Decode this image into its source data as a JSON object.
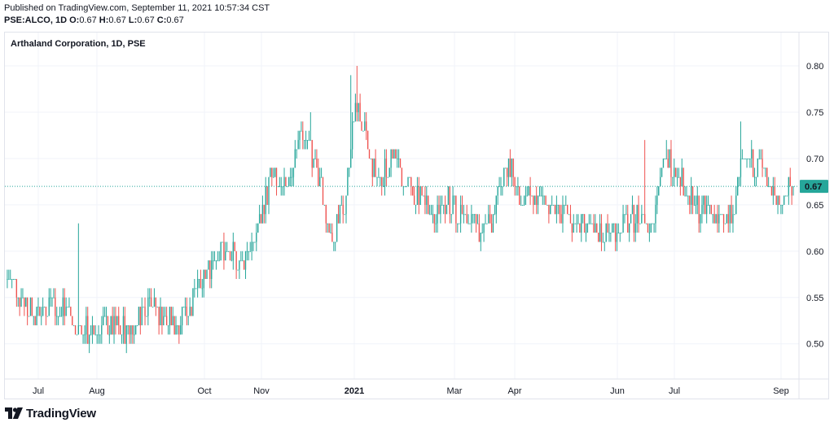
{
  "header": {
    "published": "Published on TradingView.com, September 11, 2021 10:57:34 CST",
    "symbol_line": {
      "symbol": "PSE:ALCO, 1D",
      "o_label": "O:",
      "o_value": "0.67",
      "h_label": "H:",
      "h_value": "0.67",
      "l_label": "L:",
      "l_value": "0.67",
      "c_label": "C:",
      "c_value": "0.67"
    }
  },
  "chart_title": "Arthaland Corporation, 1D, PSE",
  "logo_text": "TradingView",
  "colors": {
    "up": "#26a69a",
    "down": "#ef5350",
    "grid": "#f0f3fa",
    "price_line": "#26a69a",
    "price_label_bg": "#26a69a"
  },
  "chart_data": {
    "type": "candlestick",
    "y_ticks": [
      "0.80",
      "0.75",
      "0.70",
      "0.65",
      "0.60",
      "0.55",
      "0.50"
    ],
    "x_ticks": [
      "Jul",
      "Aug",
      "Oct",
      "Nov",
      "2021",
      "Mar",
      "Apr",
      "Jun",
      "Jul",
      "Sep"
    ],
    "x_tick_bold": [
      false,
      false,
      false,
      false,
      true,
      false,
      false,
      false,
      false,
      false
    ],
    "last_price": "0.67",
    "ylim": [
      0.462,
      0.836
    ],
    "anchors": [
      [
        0,
        0.57
      ],
      [
        10,
        0.55
      ],
      [
        18,
        0.53
      ],
      [
        28,
        0.55
      ],
      [
        34,
        0.53
      ],
      [
        38,
        0.55
      ],
      [
        44,
        0.51
      ],
      [
        48,
        0.52
      ],
      [
        55,
        0.51
      ],
      [
        62,
        0.52
      ],
      [
        70,
        0.52
      ],
      [
        78,
        0.51
      ],
      [
        84,
        0.53
      ],
      [
        92,
        0.55
      ],
      [
        100,
        0.53
      ],
      [
        108,
        0.52
      ],
      [
        116,
        0.54
      ],
      [
        124,
        0.56
      ],
      [
        132,
        0.59
      ],
      [
        140,
        0.6
      ],
      [
        148,
        0.59
      ],
      [
        156,
        0.6
      ],
      [
        163,
        0.63
      ],
      [
        170,
        0.68
      ],
      [
        178,
        0.66
      ],
      [
        185,
        0.7
      ],
      [
        190,
        0.73
      ],
      [
        196,
        0.71
      ],
      [
        200,
        0.68
      ],
      [
        205,
        0.64
      ],
      [
        212,
        0.62
      ],
      [
        218,
        0.65
      ],
      [
        222,
        0.72
      ],
      [
        226,
        0.76
      ],
      [
        230,
        0.73
      ],
      [
        234,
        0.7
      ],
      [
        240,
        0.67
      ],
      [
        248,
        0.7
      ],
      [
        254,
        0.68
      ],
      [
        262,
        0.66
      ],
      [
        270,
        0.66
      ],
      [
        278,
        0.64
      ],
      [
        284,
        0.66
      ],
      [
        292,
        0.64
      ],
      [
        298,
        0.63
      ],
      [
        305,
        0.62
      ],
      [
        312,
        0.63
      ],
      [
        318,
        0.66
      ],
      [
        324,
        0.7
      ],
      [
        328,
        0.67
      ],
      [
        334,
        0.66
      ],
      [
        340,
        0.66
      ],
      [
        346,
        0.65
      ],
      [
        352,
        0.64
      ],
      [
        360,
        0.64
      ],
      [
        368,
        0.63
      ],
      [
        374,
        0.62
      ],
      [
        380,
        0.62
      ],
      [
        388,
        0.62
      ],
      [
        394,
        0.63
      ],
      [
        402,
        0.63
      ],
      [
        410,
        0.64
      ],
      [
        416,
        0.63
      ],
      [
        422,
        0.68
      ],
      [
        428,
        0.7
      ],
      [
        434,
        0.69
      ],
      [
        440,
        0.66
      ],
      [
        446,
        0.65
      ],
      [
        452,
        0.64
      ],
      [
        458,
        0.64
      ],
      [
        464,
        0.63
      ],
      [
        470,
        0.64
      ],
      [
        474,
        0.7
      ],
      [
        478,
        0.71
      ],
      [
        484,
        0.69
      ],
      [
        490,
        0.68
      ],
      [
        496,
        0.66
      ],
      [
        502,
        0.66
      ],
      [
        508,
        0.67
      ]
    ],
    "bar_count": 509,
    "spikes": [
      {
        "i": 46,
        "high": 0.63
      },
      {
        "i": 226,
        "high": 0.8
      },
      {
        "i": 222,
        "high": 0.79
      },
      {
        "i": 196,
        "high": 0.75
      },
      {
        "i": 426,
        "high": 0.72
      },
      {
        "i": 474,
        "high": 0.74
      },
      {
        "i": 412,
        "high": 0.72
      }
    ]
  }
}
